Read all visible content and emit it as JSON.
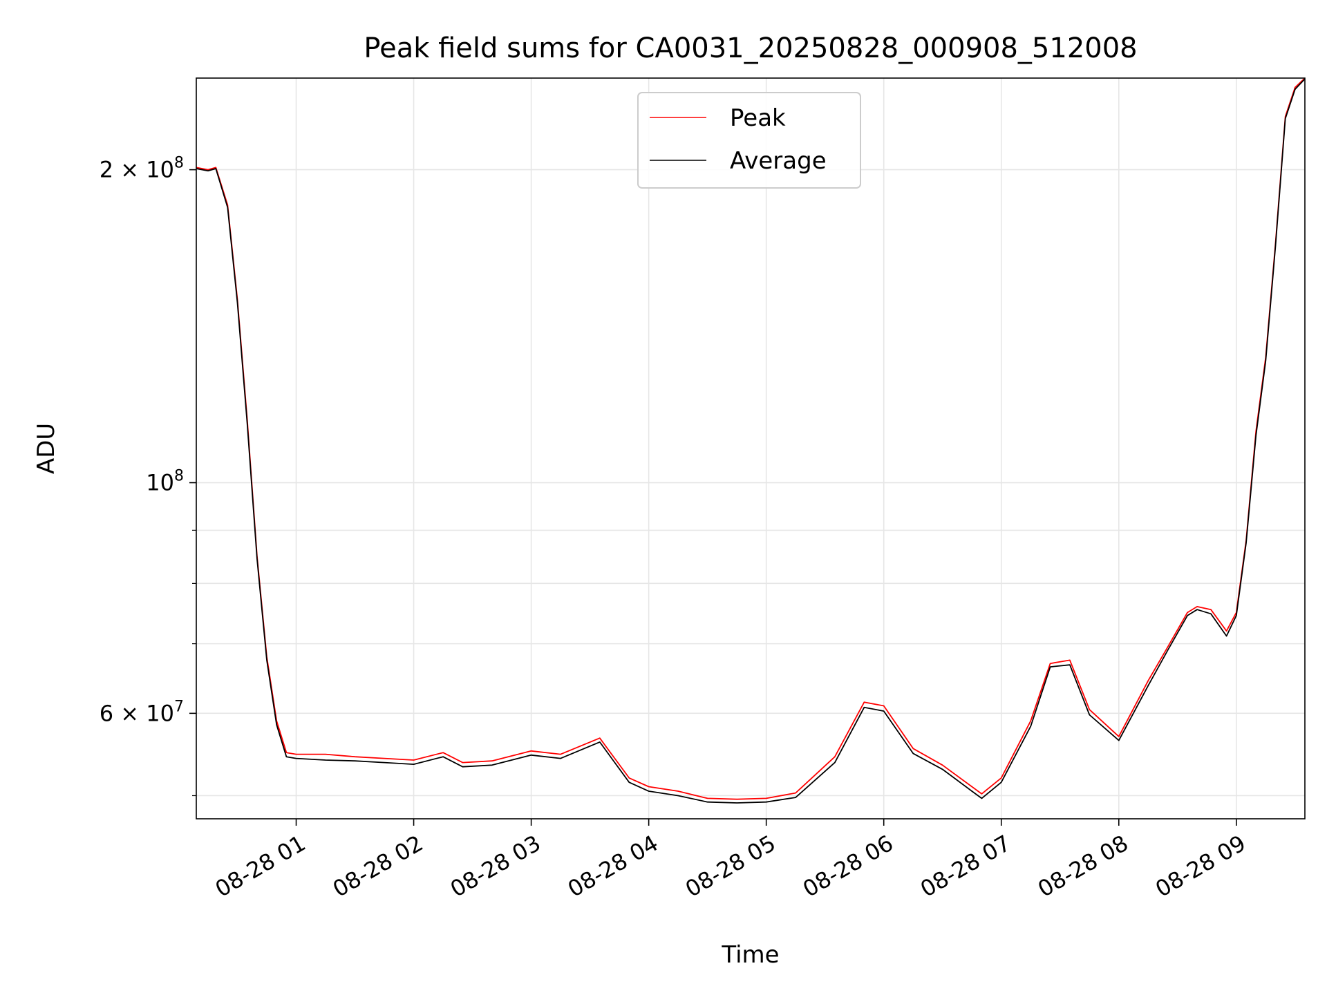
{
  "chart_data": {
    "type": "line",
    "title": "Peak field sums for CA0031_20250828_000908_512008",
    "xlabel": "Time",
    "ylabel": "ADU",
    "y_scale": "log",
    "grid": true,
    "legend_position": "upper center",
    "xlim": [
      "2025-08-28 00:09",
      "2025-08-28 09:35"
    ],
    "ylim": [
      47500000,
      245000000
    ],
    "x_ticks": [
      {
        "value": "2025-08-28 01:00",
        "label": "08-28 01"
      },
      {
        "value": "2025-08-28 02:00",
        "label": "08-28 02"
      },
      {
        "value": "2025-08-28 03:00",
        "label": "08-28 03"
      },
      {
        "value": "2025-08-28 04:00",
        "label": "08-28 04"
      },
      {
        "value": "2025-08-28 05:00",
        "label": "08-28 05"
      },
      {
        "value": "2025-08-28 06:00",
        "label": "08-28 06"
      },
      {
        "value": "2025-08-28 07:00",
        "label": "08-28 07"
      },
      {
        "value": "2025-08-28 08:00",
        "label": "08-28 08"
      },
      {
        "value": "2025-08-28 09:00",
        "label": "08-28 09"
      }
    ],
    "y_major_ticks": [
      {
        "value": 60000000,
        "base": "6",
        "exp": "7"
      },
      {
        "value": 100000000,
        "base": "",
        "exp": "8"
      },
      {
        "value": 200000000,
        "base": "2",
        "exp": "8"
      }
    ],
    "y_minor_ticks": [
      50000000,
      70000000,
      80000000,
      90000000
    ],
    "series": [
      {
        "name": "Peak",
        "color": "#ff0000",
        "x": [
          "2025-08-28 00:09",
          "2025-08-28 00:15",
          "2025-08-28 00:19",
          "2025-08-28 00:25",
          "2025-08-28 00:30",
          "2025-08-28 00:35",
          "2025-08-28 00:40",
          "2025-08-28 00:45",
          "2025-08-28 00:50",
          "2025-08-28 00:55",
          "2025-08-28 01:00",
          "2025-08-28 01:15",
          "2025-08-28 01:30",
          "2025-08-28 01:45",
          "2025-08-28 02:00",
          "2025-08-28 02:15",
          "2025-08-28 02:25",
          "2025-08-28 02:40",
          "2025-08-28 03:00",
          "2025-08-28 03:15",
          "2025-08-28 03:35",
          "2025-08-28 03:50",
          "2025-08-28 04:00",
          "2025-08-28 04:15",
          "2025-08-28 04:30",
          "2025-08-28 04:45",
          "2025-08-28 05:00",
          "2025-08-28 05:15",
          "2025-08-28 05:35",
          "2025-08-28 05:50",
          "2025-08-28 06:00",
          "2025-08-28 06:15",
          "2025-08-28 06:30",
          "2025-08-28 06:45",
          "2025-08-28 06:50",
          "2025-08-28 07:00",
          "2025-08-28 07:15",
          "2025-08-28 07:25",
          "2025-08-28 07:35",
          "2025-08-28 07:45",
          "2025-08-28 08:00",
          "2025-08-28 08:15",
          "2025-08-28 08:25",
          "2025-08-28 08:35",
          "2025-08-28 08:40",
          "2025-08-28 08:47",
          "2025-08-28 08:55",
          "2025-08-28 09:00",
          "2025-08-28 09:05",
          "2025-08-28 09:10",
          "2025-08-28 09:15",
          "2025-08-28 09:20",
          "2025-08-28 09:25",
          "2025-08-28 09:30",
          "2025-08-28 09:35"
        ],
        "y": [
          201000000,
          200000000,
          201000000,
          185000000,
          150000000,
          115000000,
          85000000,
          68000000,
          59000000,
          55000000,
          54800000,
          54800000,
          54500000,
          54300000,
          54100000,
          55000000,
          53800000,
          54000000,
          55200000,
          54800000,
          56800000,
          52000000,
          51000000,
          50500000,
          49700000,
          49600000,
          49700000,
          50300000,
          54500000,
          61500000,
          61000000,
          55500000,
          53500000,
          51000000,
          50200000,
          52000000,
          59000000,
          67000000,
          67500000,
          60500000,
          57000000,
          64500000,
          69500000,
          75000000,
          76000000,
          75500000,
          72000000,
          75000000,
          88000000,
          112000000,
          132000000,
          170000000,
          225000000,
          240000000,
          245000000
        ]
      },
      {
        "name": "Average",
        "color": "#000000",
        "x": [
          "2025-08-28 00:09",
          "2025-08-28 00:15",
          "2025-08-28 00:19",
          "2025-08-28 00:25",
          "2025-08-28 00:30",
          "2025-08-28 00:35",
          "2025-08-28 00:40",
          "2025-08-28 00:45",
          "2025-08-28 00:50",
          "2025-08-28 00:55",
          "2025-08-28 01:00",
          "2025-08-28 01:15",
          "2025-08-28 01:30",
          "2025-08-28 01:45",
          "2025-08-28 02:00",
          "2025-08-28 02:15",
          "2025-08-28 02:25",
          "2025-08-28 02:40",
          "2025-08-28 03:00",
          "2025-08-28 03:15",
          "2025-08-28 03:35",
          "2025-08-28 03:50",
          "2025-08-28 04:00",
          "2025-08-28 04:15",
          "2025-08-28 04:30",
          "2025-08-28 04:45",
          "2025-08-28 05:00",
          "2025-08-28 05:15",
          "2025-08-28 05:35",
          "2025-08-28 05:50",
          "2025-08-28 06:00",
          "2025-08-28 06:15",
          "2025-08-28 06:30",
          "2025-08-28 06:45",
          "2025-08-28 06:50",
          "2025-08-28 07:00",
          "2025-08-28 07:15",
          "2025-08-28 07:25",
          "2025-08-28 07:35",
          "2025-08-28 07:45",
          "2025-08-28 08:00",
          "2025-08-28 08:15",
          "2025-08-28 08:25",
          "2025-08-28 08:35",
          "2025-08-28 08:40",
          "2025-08-28 08:47",
          "2025-08-28 08:55",
          "2025-08-28 09:00",
          "2025-08-28 09:05",
          "2025-08-28 09:10",
          "2025-08-28 09:15",
          "2025-08-28 09:20",
          "2025-08-28 09:25",
          "2025-08-28 09:30",
          "2025-08-28 09:35"
        ],
        "y": [
          200500000,
          199500000,
          200500000,
          184000000,
          149000000,
          114000000,
          84500000,
          67500000,
          58500000,
          54500000,
          54300000,
          54100000,
          54000000,
          53800000,
          53600000,
          54500000,
          53300000,
          53500000,
          54700000,
          54300000,
          56300000,
          51500000,
          50500000,
          50000000,
          49300000,
          49200000,
          49300000,
          49800000,
          53800000,
          60800000,
          60300000,
          54900000,
          53000000,
          50500000,
          49700000,
          51500000,
          58300000,
          66500000,
          66800000,
          59800000,
          56500000,
          63800000,
          69000000,
          74500000,
          75500000,
          74800000,
          71200000,
          74500000,
          87500000,
          111000000,
          131000000,
          169000000,
          224000000,
          239000000,
          244500000
        ]
      }
    ]
  }
}
